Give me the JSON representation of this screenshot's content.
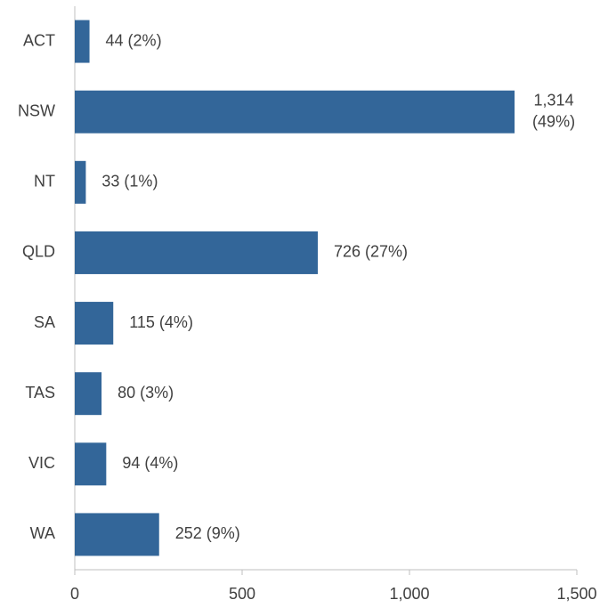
{
  "chart_data": {
    "type": "barh",
    "categories": [
      "ACT",
      "NSW",
      "NT",
      "QLD",
      "SA",
      "TAS",
      "VIC",
      "WA"
    ],
    "values": [
      44,
      1314,
      33,
      726,
      115,
      80,
      94,
      252
    ],
    "value_labels": [
      "44  (2%)",
      "1,314 (49%)",
      "33  (1%)",
      "726  (27%)",
      "115  (4%)",
      "80  (3%)",
      "94  (4%)",
      "252  (9%)"
    ],
    "color": "#336699",
    "xlim": [
      0,
      1500
    ],
    "xticks": [
      0,
      500,
      {
        "value": 1000,
        "label": "1,000"
      },
      {
        "value": 1500,
        "label": "1,500"
      }
    ],
    "grid": false
  }
}
